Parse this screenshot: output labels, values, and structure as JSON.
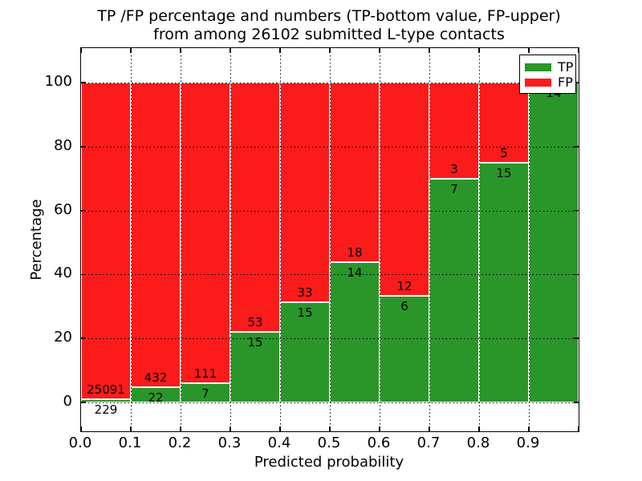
{
  "figure": {
    "title_line1": "TP /FP percentage and numbers (TP-bottom value, FP-upper)",
    "title_line2": "from among 26102 submitted L-type contacts"
  },
  "axes": {
    "xlabel": "Predicted probability",
    "ylabel": "Percentage",
    "x_tick_labels": [
      "0.0",
      "0.1",
      "0.2",
      "0.3",
      "0.4",
      "0.5",
      "0.6",
      "0.7",
      "0.8",
      "0.9"
    ],
    "y_tick_labels": [
      "0",
      "20",
      "40",
      "60",
      "80",
      "100"
    ],
    "y_tick_values": [
      0,
      20,
      40,
      60,
      80,
      100
    ],
    "grid": "dotted"
  },
  "legend": {
    "position": "upper right",
    "items": [
      {
        "label": "TP",
        "color": "#2a962a"
      },
      {
        "label": "FP",
        "color": "#fb1b1b"
      }
    ]
  },
  "colors": {
    "tp": "#2a962a",
    "fp": "#fb1b1b",
    "text": "#000000",
    "background": "#ffffff",
    "bar_edge": "#ffffff"
  },
  "chart_data": {
    "type": "bar",
    "stacked": true,
    "normalized": "each probability bin scaled to 100%",
    "title": "TP /FP percentage and numbers (TP-bottom value, FP-upper) from among 26102 submitted L-type contacts",
    "xlabel": "Predicted probability",
    "ylabel": "Percentage",
    "xlim": [
      0.0,
      1.0
    ],
    "ylim": [
      0,
      100
    ],
    "total_contacts": 26102,
    "bin_edges": [
      0.0,
      0.1,
      0.2,
      0.3,
      0.4,
      0.5,
      0.6,
      0.7,
      0.8,
      0.9,
      1.0
    ],
    "series": [
      {
        "name": "TP",
        "counts": [
          229,
          22,
          7,
          15,
          15,
          14,
          6,
          7,
          15,
          14
        ]
      },
      {
        "name": "FP",
        "counts": [
          25091,
          432,
          111,
          53,
          33,
          18,
          12,
          3,
          5,
          0
        ]
      }
    ],
    "tp_percent": [
      0.9,
      4.85,
      5.93,
      22.06,
      31.25,
      43.75,
      33.33,
      70.0,
      75.0,
      100.0
    ]
  }
}
